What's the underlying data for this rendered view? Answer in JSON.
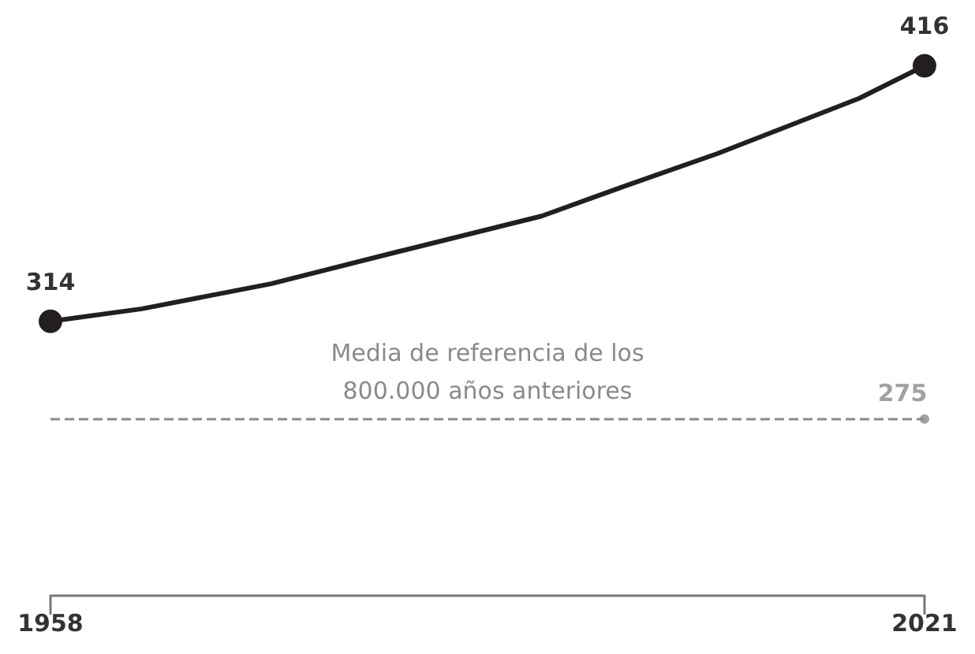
{
  "chart_data": {
    "type": "line",
    "x": [
      1958,
      1964.6,
      1973.9,
      1983.2,
      1993.4,
      1999.4,
      2006.1,
      2016.3,
      2021
    ],
    "series": [
      {
        "color": "#231f20",
        "values": [
          314,
          319,
          329,
          342,
          356,
          368,
          381,
          403,
          416
        ],
        "value_labels": [
          "314",
          null,
          null,
          null,
          null,
          null,
          null,
          null,
          "416"
        ]
      },
      {
        "type": "scatter",
        "marker": "circle",
        "x": [
          2021
        ],
        "color": "#8a8a8e",
        "values": [
          275
        ],
        "value_labels": [
          "275"
        ]
      }
    ],
    "xlim": [
      1958,
      2021
    ],
    "xticks": [
      1958,
      2021
    ],
    "tick_labels": "x",
    "grid": false,
    "marker": "none",
    "line_style": "solid",
    "ref_lines": [
      {
        "axis": "y",
        "value": 275,
        "label": "Media de referencia de los\n800.000 años anteriores",
        "color": "#8a8a8e",
        "line_style": "dashed"
      }
    ]
  }
}
